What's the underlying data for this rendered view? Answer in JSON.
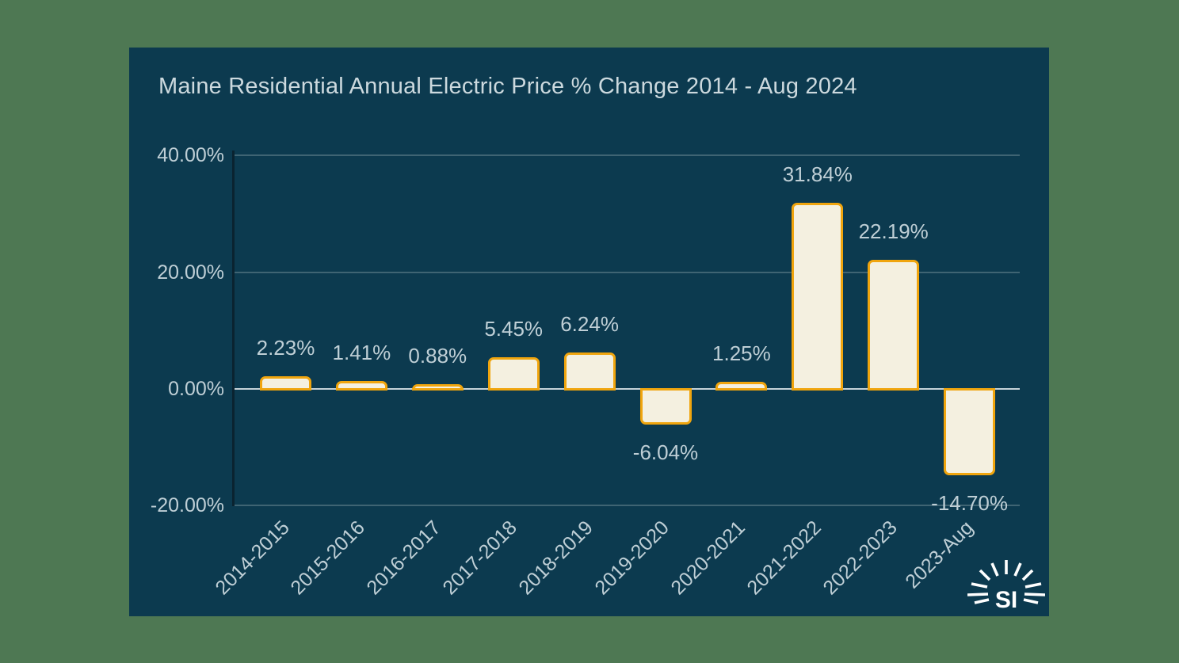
{
  "chart_data": {
    "type": "bar",
    "title": "Maine Residential Annual Electric Price % Change 2014 - Aug 2024",
    "categories": [
      "2014-2015",
      "2015-2016",
      "2016-2017",
      "2017-2018",
      "2018-2019",
      "2019-2020",
      "2020-2021",
      "2021-2022",
      "2022-2023",
      "2023-Aug"
    ],
    "values": [
      2.23,
      1.41,
      0.88,
      5.45,
      6.24,
      -6.04,
      1.25,
      31.84,
      22.19,
      -14.7
    ],
    "value_labels": [
      "2.23%",
      "1.41%",
      "0.88%",
      "5.45%",
      "6.24%",
      "-6.04%",
      "1.25%",
      "31.84%",
      "22.19%",
      "-14.70%"
    ],
    "xlabel": "",
    "ylabel": "",
    "ylim": [
      -20,
      40
    ],
    "y_ticks": [
      {
        "value": 40,
        "label": "40.00%"
      },
      {
        "value": 20,
        "label": "20.00%"
      },
      {
        "value": 0,
        "label": "0.00%"
      },
      {
        "value": -20,
        "label": "-20.00%"
      }
    ],
    "grid": true,
    "legend": "none"
  },
  "branding": {
    "logo_text": "SI"
  },
  "colors": {
    "page_bg": "#4e7853",
    "panel_bg": "#0c3a4f",
    "bar_fill": "#f4f0e0",
    "bar_border": "#f0a50e",
    "grid_line": "#3f6473",
    "zero_line": "#c6d2d8",
    "axis_line": "#0a2330",
    "title_text": "#ccd9de",
    "label_text": "#bfcfd6",
    "logo_color": "#ffffff"
  }
}
